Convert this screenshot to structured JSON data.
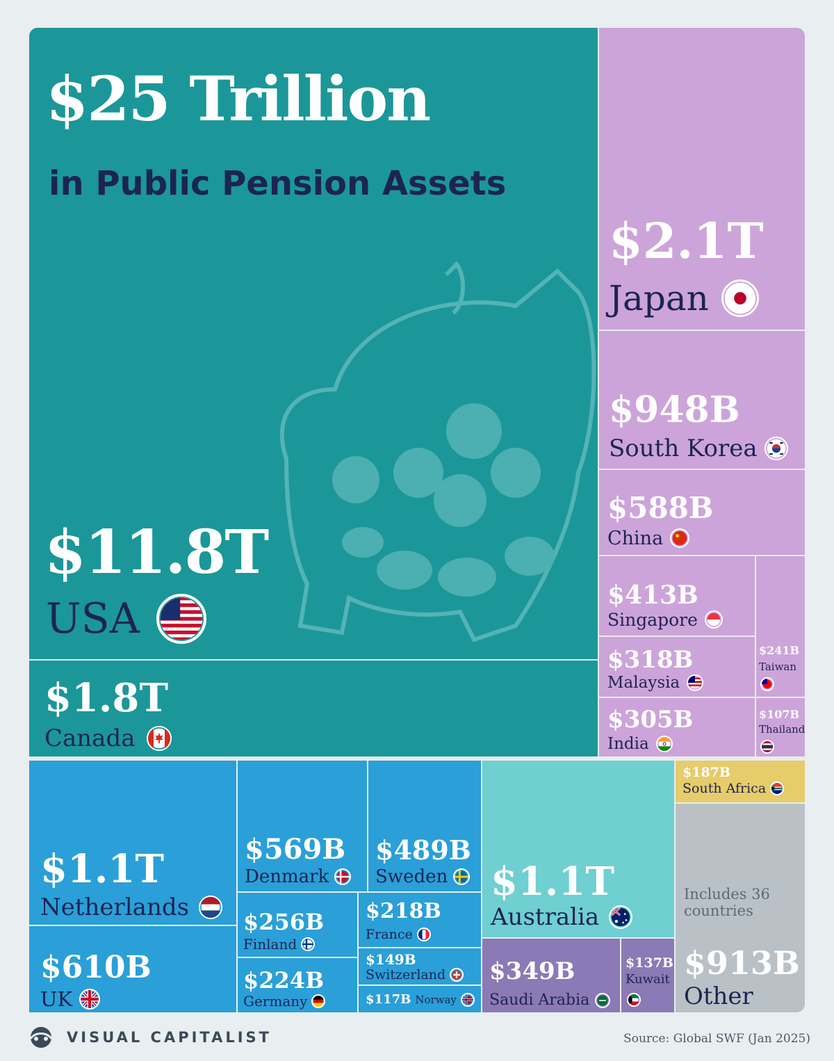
{
  "title": "$25 Trillion",
  "subtitle": "in Public Pension Assets",
  "brand": "VISUAL CAPITALIST",
  "source": "Source: Global SWF (Jan 2025)",
  "colors": {
    "teal": "#1b9799",
    "pink": "#cca4da",
    "blue": "#2a9fd8",
    "light_teal": "#6fcfd1",
    "purple": "#8b7ab5",
    "yellow": "#e6cc6a",
    "grey": "#b9c1c6",
    "navy": "#1c2452"
  },
  "tiles": {
    "usa": {
      "value": "$11.8T",
      "label": "USA",
      "icon": "us-flag-icon"
    },
    "canada": {
      "value": "$1.8T",
      "label": "Canada",
      "icon": "canada-flag-icon"
    },
    "japan": {
      "value": "$2.1T",
      "label": "Japan",
      "icon": "japan-flag-icon"
    },
    "south_korea": {
      "value": "$948B",
      "label": "South Korea",
      "icon": "south-korea-flag-icon"
    },
    "china": {
      "value": "$588B",
      "label": "China",
      "icon": "china-flag-icon"
    },
    "singapore": {
      "value": "$413B",
      "label": "Singapore",
      "icon": "singapore-flag-icon"
    },
    "malaysia": {
      "value": "$318B",
      "label": "Malaysia",
      "icon": "malaysia-flag-icon"
    },
    "india": {
      "value": "$305B",
      "label": "India",
      "icon": "india-flag-icon"
    },
    "taiwan": {
      "value": "$241B",
      "label": "Taiwan",
      "icon": "taiwan-flag-icon"
    },
    "thailand": {
      "value": "$107B",
      "label": "Thailand",
      "icon": "thailand-flag-icon"
    },
    "netherlands": {
      "value": "$1.1T",
      "label": "Netherlands",
      "icon": "netherlands-flag-icon"
    },
    "uk": {
      "value": "$610B",
      "label": "UK",
      "icon": "uk-flag-icon"
    },
    "denmark": {
      "value": "$569B",
      "label": "Denmark",
      "icon": "denmark-flag-icon"
    },
    "sweden": {
      "value": "$489B",
      "label": "Sweden",
      "icon": "sweden-flag-icon"
    },
    "finland": {
      "value": "$256B",
      "label": "Finland",
      "icon": "finland-flag-icon"
    },
    "france": {
      "value": "$218B",
      "label": "France",
      "icon": "france-flag-icon"
    },
    "switzerland": {
      "value": "$149B",
      "label": "Switzerland",
      "icon": "switzerland-flag-icon"
    },
    "germany": {
      "value": "$224B",
      "label": "Germany",
      "icon": "germany-flag-icon"
    },
    "norway": {
      "value": "$117B",
      "label": "Norway",
      "icon": "norway-flag-icon"
    },
    "australia": {
      "value": "$1.1T",
      "label": "Australia",
      "icon": "australia-flag-icon"
    },
    "saudi_arabia": {
      "value": "$349B",
      "label": "Saudi Arabia",
      "icon": "saudi-arabia-flag-icon"
    },
    "kuwait": {
      "value": "$137B",
      "label": "Kuwait",
      "icon": "kuwait-flag-icon"
    },
    "south_africa": {
      "value": "$187B",
      "label": "South Africa",
      "icon": "south-africa-flag-icon"
    },
    "other": {
      "value": "$913B",
      "label": "Other",
      "note": "Includes 36 countries"
    }
  },
  "chart_data": {
    "type": "treemap",
    "title": "$25 Trillion",
    "subtitle": "in Public Pension Assets",
    "unit": "USD",
    "categories": [
      "USA",
      "Japan",
      "Canada",
      "Netherlands",
      "Australia",
      "South Korea",
      "Other",
      "UK",
      "China",
      "Denmark",
      "Sweden",
      "Singapore",
      "Saudi Arabia",
      "Malaysia",
      "India",
      "Finland",
      "Taiwan",
      "Germany",
      "France",
      "South Africa",
      "Switzerland",
      "Kuwait",
      "Norway",
      "Thailand"
    ],
    "values_billions": [
      11800,
      2100,
      1800,
      1100,
      1100,
      948,
      913,
      610,
      588,
      569,
      489,
      413,
      349,
      318,
      305,
      256,
      241,
      224,
      218,
      187,
      149,
      137,
      117,
      107
    ],
    "labels": [
      "$11.8T",
      "$2.1T",
      "$1.8T",
      "$1.1T",
      "$1.1T",
      "$948B",
      "$913B",
      "$610B",
      "$588B",
      "$569B",
      "$489B",
      "$413B",
      "$349B",
      "$318B",
      "$305B",
      "$256B",
      "$241B",
      "$224B",
      "$218B",
      "$187B",
      "$149B",
      "$137B",
      "$117B",
      "$107B"
    ],
    "source": "Source: Global SWF (Jan 2025)"
  }
}
